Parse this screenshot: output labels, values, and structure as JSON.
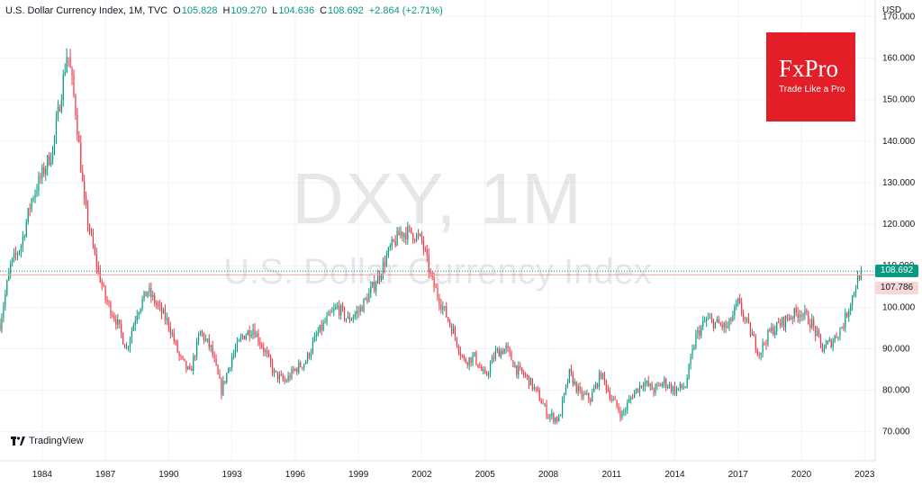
{
  "header": {
    "symbol": "U.S. Dollar Currency Index, 1M, TVC",
    "open_label": "O",
    "open": "105.828",
    "high_label": "H",
    "high": "109.270",
    "low_label": "L",
    "low": "104.636",
    "close_label": "C",
    "close": "108.692",
    "change": "+2.864 (+2.71%)"
  },
  "watermark": {
    "main": "DXY, 1M",
    "sub": "U.S. Dollar Currency Index"
  },
  "logo": {
    "title": "FxPro",
    "tagline": "Trade Like a Pro"
  },
  "branding": {
    "tradingview": "TradingView"
  },
  "price_tags": {
    "last": "108.692",
    "previous": "107.786"
  },
  "colors": {
    "up": "#089981",
    "down": "#f23645",
    "logo_red": "#e41e26"
  },
  "chart_data": {
    "type": "candlestick",
    "interval": "1M",
    "currency_label": "USD",
    "y_ticks": [
      70,
      80,
      90,
      100,
      110,
      120,
      130,
      140,
      150,
      160,
      170
    ],
    "y_tick_labels": [
      "70.000",
      "80.000",
      "90.000",
      "100.000",
      "110.000",
      "120.000",
      "130.000",
      "140.000",
      "150.000",
      "160.000",
      "170.000"
    ],
    "ylim": [
      63,
      174
    ],
    "xlim": [
      1982.0,
      2023.5
    ],
    "x_tick_labels": [
      "1984",
      "1987",
      "1990",
      "1993",
      "1996",
      "1999",
      "2002",
      "2005",
      "2008",
      "2011",
      "2014",
      "2017",
      "2020",
      "2023"
    ],
    "x_ticks": [
      1984,
      1987,
      1990,
      1993,
      1996,
      1999,
      2002,
      2005,
      2008,
      2011,
      2014,
      2017,
      2020,
      2023
    ],
    "grid": true,
    "last_price": 108.692,
    "previous_close": 107.786,
    "path": [
      [
        1982.0,
        96
      ],
      [
        1982.5,
        110
      ],
      [
        1983.0,
        115
      ],
      [
        1983.5,
        126
      ],
      [
        1984.0,
        132
      ],
      [
        1984.5,
        138
      ],
      [
        1985.0,
        155
      ],
      [
        1985.2,
        162
      ],
      [
        1985.6,
        147
      ],
      [
        1986.0,
        125
      ],
      [
        1986.5,
        112
      ],
      [
        1987.0,
        102
      ],
      [
        1987.5,
        97
      ],
      [
        1988.0,
        90
      ],
      [
        1988.5,
        99
      ],
      [
        1989.0,
        104
      ],
      [
        1989.5,
        100
      ],
      [
        1990.0,
        96
      ],
      [
        1990.5,
        88
      ],
      [
        1991.0,
        84
      ],
      [
        1991.5,
        94
      ],
      [
        1992.0,
        90
      ],
      [
        1992.5,
        80
      ],
      [
        1993.0,
        88
      ],
      [
        1993.5,
        93
      ],
      [
        1994.0,
        95
      ],
      [
        1994.5,
        90
      ],
      [
        1995.0,
        84
      ],
      [
        1995.5,
        82
      ],
      [
        1996.0,
        85
      ],
      [
        1996.5,
        87
      ],
      [
        1997.0,
        93
      ],
      [
        1997.5,
        97
      ],
      [
        1998.0,
        100
      ],
      [
        1998.5,
        97
      ],
      [
        1999.0,
        99
      ],
      [
        1999.5,
        103
      ],
      [
        2000.0,
        108
      ],
      [
        2000.5,
        114
      ],
      [
        2001.0,
        118
      ],
      [
        2001.5,
        118
      ],
      [
        2002.0,
        116
      ],
      [
        2002.5,
        106
      ],
      [
        2003.0,
        100
      ],
      [
        2003.5,
        94
      ],
      [
        2004.0,
        87
      ],
      [
        2004.5,
        88
      ],
      [
        2005.0,
        83
      ],
      [
        2005.5,
        89
      ],
      [
        2006.0,
        90
      ],
      [
        2006.5,
        85
      ],
      [
        2007.0,
        83
      ],
      [
        2007.5,
        79
      ],
      [
        2008.0,
        74
      ],
      [
        2008.5,
        73
      ],
      [
        2009.0,
        84
      ],
      [
        2009.5,
        79
      ],
      [
        2010.0,
        78
      ],
      [
        2010.5,
        84
      ],
      [
        2011.0,
        78
      ],
      [
        2011.5,
        74
      ],
      [
        2012.0,
        79
      ],
      [
        2012.5,
        82
      ],
      [
        2013.0,
        80
      ],
      [
        2013.5,
        82
      ],
      [
        2014.0,
        80
      ],
      [
        2014.5,
        81
      ],
      [
        2015.0,
        93
      ],
      [
        2015.5,
        97
      ],
      [
        2016.0,
        96
      ],
      [
        2016.5,
        95
      ],
      [
        2017.0,
        101
      ],
      [
        2017.5,
        95
      ],
      [
        2018.0,
        89
      ],
      [
        2018.5,
        94
      ],
      [
        2019.0,
        96
      ],
      [
        2019.5,
        98
      ],
      [
        2020.0,
        99
      ],
      [
        2020.5,
        96
      ],
      [
        2021.0,
        90
      ],
      [
        2021.5,
        92
      ],
      [
        2022.0,
        96
      ],
      [
        2022.5,
        104
      ],
      [
        2022.8,
        108.7
      ]
    ]
  }
}
